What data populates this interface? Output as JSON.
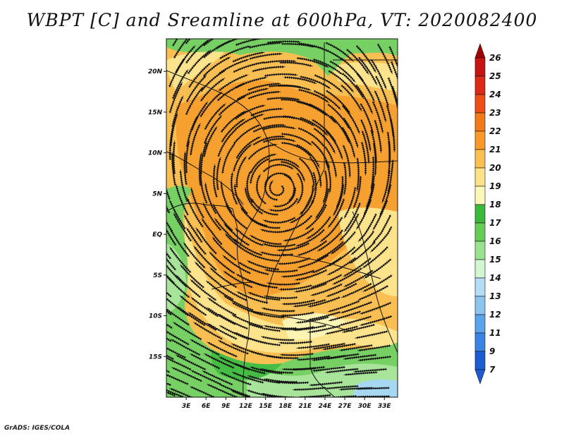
{
  "title": "WBPT [C] and Sreamline at 600hPa, VT: 2020082400",
  "credit": "GrADS: IGES/COLA",
  "map": {
    "lon_range": [
      0,
      35
    ],
    "lat_range": [
      -20,
      24
    ],
    "lon_ticks": [
      "3E",
      "6E",
      "9E",
      "12E",
      "15E",
      "18E",
      "21E",
      "24E",
      "27E",
      "30E",
      "33E"
    ],
    "lat_ticks": [
      "20N",
      "15N",
      "10N",
      "5N",
      "EQ",
      "5S",
      "10S",
      "15S"
    ]
  },
  "colorbar": {
    "labels": [
      "26",
      "25",
      "24",
      "23",
      "22",
      "21",
      "20",
      "19",
      "18",
      "17",
      "16",
      "15",
      "14",
      "13",
      "12",
      "11",
      "9",
      "7"
    ],
    "colors": [
      "#a00000",
      "#c81410",
      "#e02818",
      "#f04c18",
      "#f47a18",
      "#f99a28",
      "#fbc050",
      "#fde28a",
      "#fbf7b8",
      "#3cb83c",
      "#66cc55",
      "#9ae38e",
      "#d2f5d2",
      "#b4dcf4",
      "#8cc4f0",
      "#5aa4ec",
      "#3a84e4",
      "#1e5cd4"
    ]
  },
  "zones": {
    "hot": "#f6a030",
    "warm": "#f9bf52",
    "mild": "#fde38c",
    "pale": "#fbf4b4",
    "green_dark": "#45bd45",
    "green": "#77d064",
    "green_light": "#a8e59a",
    "blue": "#a6d8f2"
  }
}
